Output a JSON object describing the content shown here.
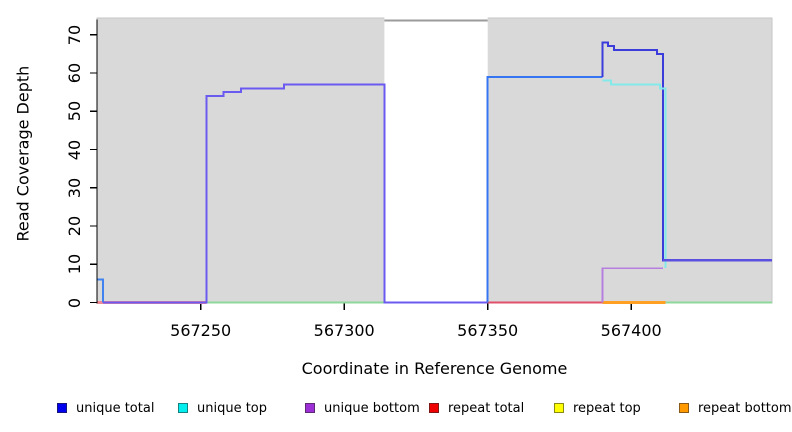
{
  "figure": {
    "ylabel": "Read Coverage Depth",
    "xlabel": "Coordinate in Reference Genome",
    "panel_color": "#d9d9d9",
    "panel_border_color": "#c6c6c6",
    "gap_band_color": "#ffffff",
    "gap_band_top_border_color": "#9b9b9b",
    "axis_color": "#000000"
  },
  "chart_data": {
    "type": "line",
    "title": "",
    "xlabel": "Coordinate in Reference Genome",
    "ylabel": "Read Coverage Depth",
    "xlim": [
      567214,
      567449
    ],
    "ylim": [
      0,
      74
    ],
    "xticks": [
      567250,
      567300,
      567350,
      567400
    ],
    "xtick_labels": [
      "567250",
      "567300",
      "567350",
      "567400"
    ],
    "yticks": [
      0,
      10,
      20,
      30,
      40,
      50,
      60,
      70
    ],
    "ytick_labels": [
      "0",
      "10",
      "20",
      "30",
      "40",
      "50",
      "60",
      "70"
    ],
    "grid": "off",
    "legend_position": "bottom",
    "gap_region": {
      "start": 567314,
      "end": 567350,
      "note": "white band over gray panel with gray top border"
    },
    "series": [
      {
        "name": "unique total",
        "color": "#0000ee",
        "step_points": [
          [
            567214,
            6
          ],
          [
            567216,
            0
          ],
          [
            567252,
            54
          ],
          [
            567258,
            55
          ],
          [
            567264,
            56
          ],
          [
            567279,
            57
          ],
          [
            567314,
            0
          ],
          [
            567350,
            59
          ],
          [
            567390,
            68
          ],
          [
            567392,
            67
          ],
          [
            567394,
            66
          ],
          [
            567409,
            65
          ],
          [
            567411,
            11
          ],
          [
            567449,
            11
          ]
        ]
      },
      {
        "name": "unique top",
        "color": "#00eeee",
        "step_points": [
          [
            567214,
            0
          ],
          [
            567350,
            59
          ],
          [
            567390,
            58
          ],
          [
            567393,
            57
          ],
          [
            567411,
            0
          ],
          [
            567449,
            0
          ]
        ]
      },
      {
        "name": "unique bottom",
        "color": "#9d2fd6",
        "step_points": [
          [
            567214,
            0
          ],
          [
            567252,
            54
          ],
          [
            567258,
            55
          ],
          [
            567264,
            56
          ],
          [
            567279,
            57
          ],
          [
            567314,
            0
          ],
          [
            567390,
            9
          ],
          [
            567411,
            11
          ],
          [
            567449,
            11
          ]
        ]
      },
      {
        "name": "repeat total",
        "color": "#ee0000",
        "step_points": [
          [
            567214,
            0
          ],
          [
            567449,
            0
          ]
        ]
      },
      {
        "name": "repeat top",
        "color": "#ffff00",
        "step_points": [
          [
            567214,
            0
          ],
          [
            567449,
            0
          ]
        ]
      },
      {
        "name": "repeat bottom",
        "color": "#ff9900",
        "step_points": [
          [
            567214,
            0
          ],
          [
            567449,
            0
          ]
        ]
      }
    ]
  },
  "plot_lines": [
    {
      "name": "repeat-total-baseline-left",
      "color": "#f08a96",
      "width": 3.2,
      "pts": [
        [
          567214,
          0
        ],
        [
          567252,
          0
        ]
      ]
    },
    {
      "name": "repeat-total-baseline-mid",
      "color": "#e0506a",
      "width": 2,
      "pts": [
        [
          567350,
          0
        ],
        [
          567390,
          0
        ]
      ]
    },
    {
      "name": "repeat-bottom-baseline",
      "color": "#ffa025",
      "width": 2.6,
      "pts": [
        [
          567390,
          0
        ],
        [
          567412,
          0
        ]
      ]
    },
    {
      "name": "baseline-overlap-green-left",
      "color": "#8fd89b",
      "width": 2,
      "pts": [
        [
          567252,
          0
        ],
        [
          567314,
          0
        ]
      ]
    },
    {
      "name": "baseline-overlap-green-right",
      "color": "#8fd89b",
      "width": 2,
      "pts": [
        [
          567412,
          0
        ],
        [
          567449,
          0
        ]
      ]
    },
    {
      "name": "unique-total-left-spike",
      "color": "#3f82f0",
      "width": 2,
      "pts": [
        [
          567214,
          6
        ],
        [
          567216,
          6
        ],
        [
          567216,
          0
        ]
      ]
    },
    {
      "name": "unique-total-rise-59",
      "color": "#3575f2",
      "width": 2,
      "pts": [
        [
          567350,
          0
        ],
        [
          567350,
          59
        ],
        [
          567390,
          59
        ]
      ]
    },
    {
      "name": "unique-total-navy",
      "color": "#3c3cdd",
      "width": 2,
      "pts": [
        [
          567390,
          59
        ],
        [
          567390,
          68
        ],
        [
          567392,
          68
        ],
        [
          567392,
          67
        ],
        [
          567394,
          67
        ],
        [
          567394,
          66
        ],
        [
          567409,
          66
        ],
        [
          567409,
          65
        ],
        [
          567411,
          65
        ],
        [
          567411,
          11
        ],
        [
          567449,
          11
        ]
      ]
    },
    {
      "name": "unique-top-cyan",
      "color": "#84e9e9",
      "width": 2,
      "pts": [
        [
          567390,
          58
        ],
        [
          567393,
          58
        ],
        [
          567393,
          57
        ],
        [
          567410,
          57
        ],
        [
          567410,
          56
        ],
        [
          567412,
          56
        ],
        [
          567412,
          9
        ]
      ]
    },
    {
      "name": "unique-bottom-left-plateau",
      "color": "#6a5aef",
      "width": 2,
      "pts": [
        [
          567216,
          0
        ],
        [
          567252,
          0
        ],
        [
          567252,
          54
        ],
        [
          567258,
          54
        ],
        [
          567258,
          55
        ],
        [
          567264,
          55
        ],
        [
          567264,
          56
        ],
        [
          567279,
          56
        ],
        [
          567279,
          57
        ],
        [
          567314,
          57
        ],
        [
          567314,
          0
        ],
        [
          567350,
          0
        ]
      ]
    },
    {
      "name": "unique-bottom-right-light",
      "color": "#b57fe0",
      "width": 1.6,
      "pts": [
        [
          567390,
          0
        ],
        [
          567390,
          9
        ],
        [
          567411,
          9
        ]
      ]
    },
    {
      "name": "unique-bottom-final-11",
      "color": "#5b4fe0",
      "width": 2.4,
      "pts": [
        [
          567411,
          11
        ],
        [
          567449,
          11
        ]
      ]
    }
  ],
  "legend": {
    "items": [
      {
        "label": "unique total",
        "color": "#0000ee"
      },
      {
        "label": "unique top",
        "color": "#00eeee"
      },
      {
        "label": "unique bottom",
        "color": "#9d2fd6"
      },
      {
        "label": "repeat total",
        "color": "#ee0000"
      },
      {
        "label": "repeat top",
        "color": "#ffff00"
      },
      {
        "label": "repeat bottom",
        "color": "#ff9900"
      }
    ]
  }
}
